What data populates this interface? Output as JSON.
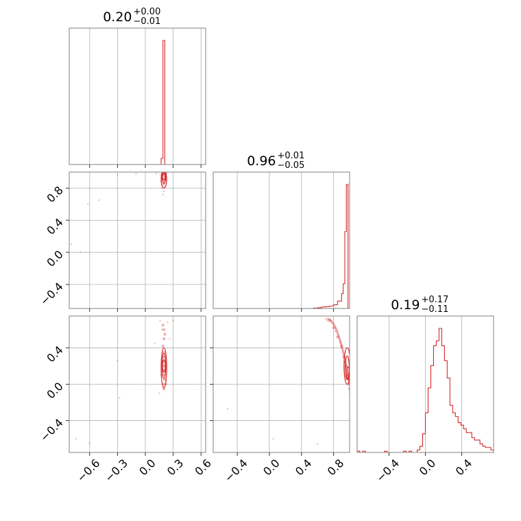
{
  "chart_data": {
    "type": "corner",
    "color": "#d62728",
    "grid": true,
    "ticks": {
      "p1": [
        "−0.6",
        "−0.3",
        "0.0",
        "0.3",
        "0.6"
      ],
      "p2_y": [
        "−0.4",
        "0.0",
        "0.4",
        "0.8"
      ],
      "p2_x": [
        "−0.4",
        "0.0",
        "0.4",
        "0.8"
      ],
      "p3_y": [
        "−0.4",
        "0.0",
        "0.4"
      ],
      "p3_x": [
        "−0.4",
        "0.0",
        "0.4"
      ]
    },
    "params": [
      {
        "median": "0.20",
        "plus": "+0.00",
        "minus": "−0.01",
        "range": [
          -0.82,
          0.65
        ],
        "hist": {
          "edges": [
            0.15,
            0.17,
            0.19,
            0.21,
            0.23
          ],
          "counts": [
            0,
            0.05,
            1.0,
            0
          ]
        }
      },
      {
        "median": "0.96",
        "plus": "+0.01",
        "minus": "−0.05",
        "range": [
          -0.7,
          1.0
        ],
        "hist": {
          "edges": [
            0.5,
            0.55,
            0.6,
            0.65,
            0.7,
            0.75,
            0.8,
            0.85,
            0.9,
            0.92,
            0.94,
            0.96,
            0.98,
            1.0
          ],
          "counts": [
            0,
            0.003,
            0.006,
            0.012,
            0.015,
            0.02,
            0.03,
            0.06,
            0.12,
            0.2,
            0.62,
            1.0,
            0
          ]
        }
      },
      {
        "median": "0.19",
        "plus": "+0.17",
        "minus": "−0.11",
        "range": [
          -0.75,
          0.75
        ],
        "hist": {
          "edges": [
            -0.75,
            -0.72,
            -0.69,
            -0.66,
            -0.63,
            -0.6,
            -0.57,
            -0.54,
            -0.51,
            -0.48,
            -0.45,
            -0.42,
            -0.39,
            -0.36,
            -0.33,
            -0.3,
            -0.27,
            -0.24,
            -0.21,
            -0.18,
            -0.15,
            -0.12,
            -0.09,
            -0.06,
            -0.03,
            0.0,
            0.03,
            0.06,
            0.09,
            0.12,
            0.15,
            0.18,
            0.21,
            0.24,
            0.27,
            0.3,
            0.33,
            0.36,
            0.39,
            0.42,
            0.45,
            0.48,
            0.51,
            0.54,
            0.57,
            0.6,
            0.63,
            0.66,
            0.69,
            0.72,
            0.75
          ],
          "counts": [
            0.01,
            0.0,
            0.01,
            0.0,
            0.0,
            0.0,
            0.0,
            0.0,
            0.0,
            0.0,
            0.01,
            0.0,
            0.0,
            0.0,
            0.0,
            0.0,
            0.0,
            0.01,
            0.0,
            0.01,
            0.0,
            0.0,
            0.02,
            0.05,
            0.15,
            0.32,
            0.52,
            0.7,
            0.86,
            0.9,
            1.0,
            0.86,
            0.74,
            0.6,
            0.38,
            0.32,
            0.29,
            0.24,
            0.22,
            0.19,
            0.16,
            0.16,
            0.12,
            0.1,
            0.1,
            0.07,
            0.05,
            0.04,
            0.04,
            0.02
          ]
        }
      }
    ],
    "pairs": [
      {
        "x": 0,
        "y": 1,
        "core": [
          [
            0.2,
            0.86
          ],
          [
            0.2,
            0.9
          ],
          [
            0.21,
            0.93
          ],
          [
            0.21,
            0.96
          ],
          [
            0.19,
            0.99
          ],
          [
            0.22,
            0.99
          ]
        ],
        "scatter": [
          [
            0.18,
            0.8
          ],
          [
            0.19,
            0.84
          ],
          [
            0.17,
            0.88
          ],
          [
            0.21,
            0.82
          ],
          [
            0.2,
            0.76
          ],
          [
            0.18,
            0.92
          ],
          [
            0.22,
            0.9
          ],
          [
            0.16,
            0.97
          ],
          [
            -0.3,
            0.97
          ],
          [
            -0.62,
            0.6
          ],
          [
            -0.8,
            0.1
          ],
          [
            -0.7,
            0.0
          ],
          [
            -0.5,
            0.65
          ],
          [
            0.12,
            0.98
          ],
          [
            -0.1,
            0.98
          ],
          [
            0.19,
            0.72
          ]
        ],
        "contours": [
          {
            "cx": 0.2,
            "cy": 0.93,
            "rx": 0.02,
            "ry": 0.07
          },
          {
            "cx": 0.2,
            "cy": 0.91,
            "rx": 0.03,
            "ry": 0.11
          },
          {
            "cx": 0.2,
            "cy": 0.94,
            "rx": 0.015,
            "ry": 0.04
          }
        ]
      },
      {
        "x": 0,
        "y": 2,
        "core": [
          [
            0.2,
            0.1
          ],
          [
            0.2,
            0.15
          ],
          [
            0.2,
            0.2
          ],
          [
            0.19,
            0.25
          ],
          [
            0.2,
            0.3
          ],
          [
            0.21,
            0.05
          ],
          [
            0.2,
            0.35
          ],
          [
            0.19,
            0.42
          ],
          [
            0.2,
            0.5
          ],
          [
            0.21,
            0.55
          ],
          [
            0.2,
            0.6
          ],
          [
            0.19,
            0.65
          ],
          [
            0.2,
            0.0
          ],
          [
            0.2,
            -0.05
          ]
        ],
        "scatter": [
          [
            0.16,
            0.7
          ],
          [
            0.24,
            0.68
          ],
          [
            0.18,
            0.6
          ],
          [
            0.22,
            0.3
          ],
          [
            0.17,
            0.1
          ],
          [
            0.23,
            0.0
          ],
          [
            -0.28,
            -0.15
          ],
          [
            -0.3,
            0.26
          ],
          [
            -0.75,
            -0.6
          ],
          [
            -0.6,
            -0.65
          ],
          [
            0.3,
            0.7
          ],
          [
            0.1,
            0.45
          ],
          [
            0.26,
            0.5
          ],
          [
            0.15,
            -0.1
          ]
        ],
        "contours": [
          {
            "cx": 0.2,
            "cy": 0.18,
            "rx": 0.03,
            "ry": 0.22
          },
          {
            "cx": 0.2,
            "cy": 0.2,
            "rx": 0.02,
            "ry": 0.14
          },
          {
            "cx": 0.2,
            "cy": 0.2,
            "rx": 0.012,
            "ry": 0.07
          }
        ]
      },
      {
        "x": 1,
        "y": 2,
        "core": [
          [
            0.75,
            0.7
          ],
          [
            0.8,
            0.62
          ],
          [
            0.85,
            0.52
          ],
          [
            0.9,
            0.42
          ],
          [
            0.93,
            0.3
          ],
          [
            0.96,
            0.2
          ],
          [
            0.98,
            0.1
          ],
          [
            0.99,
            0.0
          ],
          [
            1.0,
            -0.05
          ]
        ],
        "scatter": [
          [
            0.7,
            0.72
          ],
          [
            0.72,
            0.7
          ],
          [
            0.82,
            0.58
          ],
          [
            0.88,
            0.46
          ],
          [
            0.95,
            0.25
          ],
          [
            0.97,
            0.15
          ],
          [
            -0.52,
            -0.27
          ],
          [
            0.05,
            -0.6
          ],
          [
            0.6,
            -0.66
          ],
          [
            0.99,
            0.35
          ],
          [
            1.0,
            -0.1
          ]
        ],
        "contours": [
          {
            "cx": 0.97,
            "cy": 0.2,
            "rx": 0.04,
            "ry": 0.2
          },
          {
            "cx": 0.97,
            "cy": 0.18,
            "rx": 0.025,
            "ry": 0.13
          },
          {
            "cx": 0.98,
            "cy": 0.12,
            "rx": 0.015,
            "ry": 0.07
          }
        ]
      }
    ]
  }
}
